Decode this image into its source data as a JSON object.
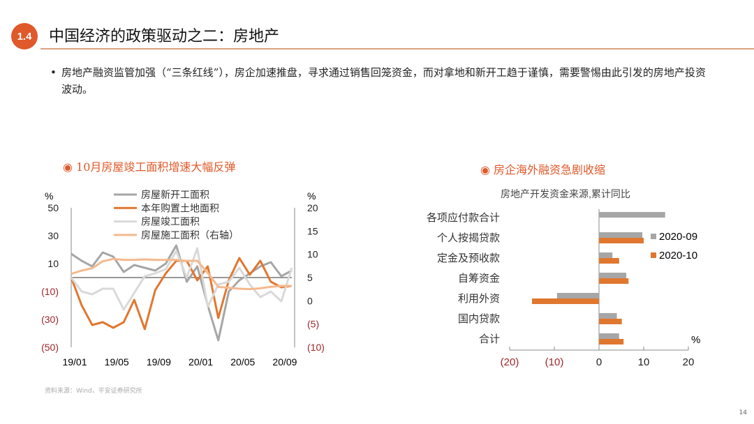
{
  "header": {
    "section_number": "1.4",
    "title": "中国经济的政策驱动之二：房地产"
  },
  "bullet": "房地产融资监管加强（“三条红线”），房企加速推盘，寻求通过销售回笼资金，而对拿地和新开工趋于谨慎，需要警惕由此引发的房地产投资波动。",
  "footer": {
    "source": "资料来源：Wind，平安证券研究所",
    "page": "14"
  },
  "accent": "#e0592a",
  "chart_data": [
    {
      "type": "line",
      "panel_title": "10月房屋竣工面积增速大幅反弹",
      "left_unit": "%",
      "right_unit": "%",
      "ylim": [
        -50,
        50
      ],
      "yticks": [
        "50",
        "30",
        "10",
        "(10)",
        "(30)",
        "(50)"
      ],
      "y2lim": [
        -10,
        20
      ],
      "y2ticks": [
        "20",
        "15",
        "10",
        "5",
        "0",
        "(5)",
        "(10)"
      ],
      "xticks": [
        "19/01",
        "19/05",
        "19/09",
        "20/01",
        "20/05",
        "20/09"
      ],
      "x": [
        "19/01",
        "19/02",
        "19/03",
        "19/04",
        "19/05",
        "19/06",
        "19/07",
        "19/08",
        "19/09",
        "19/10",
        "19/11",
        "19/12",
        "20/01",
        "20/02",
        "20/03",
        "20/04",
        "20/05",
        "20/06",
        "20/07",
        "20/08",
        "20/09",
        "20/10"
      ],
      "legend": "top",
      "series": [
        {
          "name": "房屋新开工面积",
          "axis": "left",
          "color": "#a6a6a6",
          "values": [
            17,
            12,
            8,
            18,
            15,
            4,
            9,
            7,
            5,
            10,
            23,
            -3,
            8,
            -20,
            -45,
            -10,
            -2,
            3,
            8,
            11,
            1,
            5
          ]
        },
        {
          "name": "本年购置土地面积",
          "axis": "left",
          "color": "#e0772f",
          "values": [
            0,
            -20,
            -34,
            -32,
            -36,
            -32,
            -16,
            -37,
            -9,
            3,
            12,
            12,
            -2,
            8,
            -29,
            -2,
            14,
            2,
            12,
            -3,
            -7,
            -6
          ]
        },
        {
          "name": "房屋竣工面积",
          "axis": "left",
          "color": "#d9d9d9",
          "values": [
            0,
            -10,
            -12,
            -8,
            -8,
            -23,
            -11,
            1,
            3,
            6,
            19,
            0,
            21,
            -21,
            -5,
            -3,
            7,
            -5,
            -14,
            -10,
            -17,
            7
          ]
        },
        {
          "name": "房屋施工面积（右轴）",
          "axis": "right",
          "color": "#f4b98e",
          "values": [
            5.8,
            6.5,
            7,
            8.5,
            9,
            8.8,
            8.8,
            8.9,
            8.8,
            8.8,
            8.8,
            8.6,
            8.6,
            6,
            3,
            2.8,
            2.6,
            2.5,
            2.7,
            3,
            3.2,
            3.2
          ]
        }
      ]
    },
    {
      "type": "bar",
      "orientation": "horizontal",
      "panel_title": "房企海外融资急剧收缩",
      "title": "房地产开发资金来源,累计同比",
      "unit": "%",
      "xlim": [
        -20,
        20
      ],
      "xticks": [
        "(20)",
        "(10)",
        "0",
        "10",
        "20"
      ],
      "legend": "right",
      "categories": [
        "各项应付款合计",
        "个人按揭贷款",
        "定金及预收款",
        "自筹资金",
        "利用外资",
        "国内贷款",
        "合计"
      ],
      "series": [
        {
          "name": "2020-09",
          "color": "#a6a6a6",
          "values": [
            14.8,
            9.7,
            3.0,
            6.1,
            -9.4,
            4.0,
            4.5
          ]
        },
        {
          "name": "2020-10",
          "color": "#e0772f",
          "values": [
            null,
            10.0,
            4.5,
            6.6,
            -15.0,
            5.1,
            5.5
          ]
        }
      ]
    }
  ]
}
